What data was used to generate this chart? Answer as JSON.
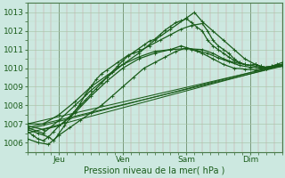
{
  "xlabel": "Pression niveau de la mer( hPa )",
  "ylim": [
    1005.5,
    1013.5
  ],
  "xlim": [
    0,
    96
  ],
  "yticks": [
    1006,
    1007,
    1008,
    1009,
    1010,
    1011,
    1012,
    1013
  ],
  "xtick_positions": [
    12,
    36,
    60,
    84
  ],
  "xtick_labels": [
    "Jeu",
    "Ven",
    "Sam",
    "Dim"
  ],
  "bg_color": "#cce8e0",
  "line_color": "#1a5c1a",
  "markersize": 2.5,
  "linewidth": 0.9,
  "series": [
    {
      "x": [
        0,
        2,
        4,
        6,
        8,
        10,
        12,
        14,
        16,
        18,
        20,
        22,
        24,
        26,
        28,
        30,
        32,
        34,
        36,
        38,
        40,
        42,
        44,
        46,
        48,
        50,
        52,
        54,
        56,
        58,
        60,
        62,
        64,
        66,
        68,
        70,
        72,
        74,
        76,
        78,
        80,
        82,
        84,
        86,
        88,
        90,
        92,
        94,
        96
      ],
      "y": [
        1006.6,
        1006.4,
        1006.2,
        1006.1,
        1006.3,
        1006.6,
        1006.9,
        1007.1,
        1007.4,
        1007.7,
        1008.0,
        1008.3,
        1008.6,
        1008.9,
        1009.2,
        1009.5,
        1009.8,
        1010.1,
        1010.4,
        1010.65,
        1010.85,
        1011.05,
        1011.25,
        1011.45,
        1011.55,
        1011.8,
        1012.05,
        1012.25,
        1012.45,
        1012.55,
        1012.65,
        1012.45,
        1012.2,
        1012.0,
        1011.5,
        1011.2,
        1011.0,
        1010.8,
        1010.6,
        1010.4,
        1010.3,
        1010.2,
        1010.15,
        1010.2,
        1010.1,
        1010.05,
        1010.1,
        1010.2,
        1010.3
      ]
    },
    {
      "x": [
        0,
        6,
        12,
        18,
        24,
        30,
        36,
        42,
        48,
        54,
        60,
        63,
        66,
        70,
        74,
        78,
        82,
        86,
        90,
        96
      ],
      "y": [
        1006.8,
        1006.5,
        1007.2,
        1008.0,
        1008.8,
        1009.5,
        1010.2,
        1010.8,
        1011.5,
        1012.1,
        1012.7,
        1013.0,
        1012.5,
        1012.0,
        1011.5,
        1011.0,
        1010.5,
        1010.2,
        1010.0,
        1010.2
      ]
    },
    {
      "x": [
        0,
        4,
        8,
        12,
        16,
        20,
        24,
        28,
        32,
        36,
        40,
        44,
        48,
        52,
        56,
        60,
        64,
        68,
        72,
        76,
        80,
        84,
        88,
        92,
        96
      ],
      "y": [
        1006.2,
        1006.0,
        1005.9,
        1006.4,
        1006.8,
        1007.2,
        1007.6,
        1008.0,
        1008.5,
        1009.0,
        1009.5,
        1010.0,
        1010.3,
        1010.6,
        1010.9,
        1011.1,
        1010.95,
        1010.8,
        1010.55,
        1010.35,
        1010.15,
        1010.05,
        1010.0,
        1010.1,
        1010.2
      ]
    },
    {
      "x": [
        0,
        6,
        12,
        18,
        24,
        30,
        36,
        42,
        48,
        54,
        60,
        66,
        70,
        74,
        78,
        82,
        86,
        90,
        96
      ],
      "y": [
        1007.0,
        1007.0,
        1007.5,
        1008.2,
        1009.0,
        1009.6,
        1010.2,
        1010.6,
        1010.9,
        1011.0,
        1011.05,
        1011.0,
        1010.8,
        1010.5,
        1010.3,
        1010.2,
        1010.1,
        1010.0,
        1010.1
      ]
    },
    {
      "x": [
        0,
        4,
        8,
        10,
        12,
        14,
        16,
        18,
        20,
        22,
        24,
        26,
        28,
        30,
        34,
        38,
        42,
        46,
        50,
        54,
        58,
        62,
        66,
        68,
        70,
        72,
        74,
        76,
        78,
        80,
        82,
        84,
        86,
        88,
        90,
        96
      ],
      "y": [
        1006.7,
        1006.5,
        1006.3,
        1006.1,
        1006.5,
        1006.9,
        1007.3,
        1007.7,
        1008.1,
        1008.6,
        1009.0,
        1009.4,
        1009.7,
        1009.9,
        1010.3,
        1010.7,
        1010.9,
        1011.2,
        1011.5,
        1011.8,
        1012.1,
        1012.3,
        1012.4,
        1012.0,
        1011.5,
        1011.2,
        1011.0,
        1010.8,
        1010.5,
        1010.3,
        1010.2,
        1010.15,
        1010.2,
        1010.1,
        1010.05,
        1010.2
      ]
    },
    {
      "x": [
        0,
        6,
        12,
        18,
        24,
        30,
        36,
        42,
        48,
        54,
        58,
        62,
        66,
        70,
        74,
        78,
        82,
        86,
        90,
        96
      ],
      "y": [
        1006.9,
        1006.7,
        1006.9,
        1007.6,
        1008.5,
        1009.3,
        1010.0,
        1010.5,
        1010.8,
        1011.0,
        1011.2,
        1011.0,
        1010.8,
        1010.5,
        1010.2,
        1010.0,
        1009.95,
        1009.9,
        1010.0,
        1010.1
      ]
    }
  ],
  "straight_lines": [
    {
      "x0": 0,
      "y0": 1006.5,
      "x1": 96,
      "y1": 1010.15
    },
    {
      "x0": 0,
      "y0": 1006.7,
      "x1": 96,
      "y1": 1010.2
    },
    {
      "x0": 0,
      "y0": 1006.8,
      "x1": 96,
      "y1": 1010.1
    },
    {
      "x0": 0,
      "y0": 1007.0,
      "x1": 96,
      "y1": 1010.15
    }
  ]
}
